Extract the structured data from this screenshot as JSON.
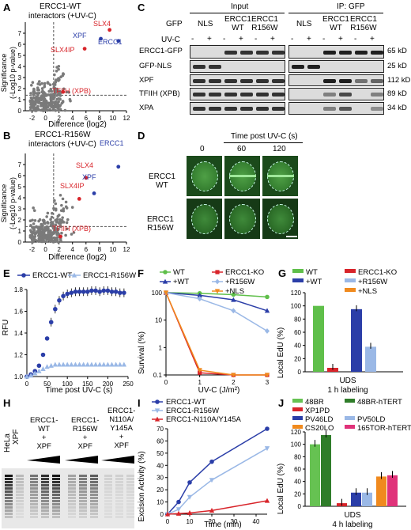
{
  "colors": {
    "wt": "#2b3ea8",
    "r156w": "#9ab8e6",
    "ko": "#d8242a",
    "nls": "#f08a1e",
    "green": "#5fbf4a",
    "red": "#d8242a",
    "blue": "#2b3ea8",
    "gray": "#7a7a7a"
  },
  "panels": {
    "A": "A",
    "B": "B",
    "C": "C",
    "D": "D",
    "E": "E",
    "F": "F",
    "G": "G",
    "H": "H",
    "I": "I",
    "J": "J"
  },
  "panelA": {
    "title": "ERCC1-WT",
    "subtitle": "interactors (+UV-C)",
    "ylabel": "Significance",
    "ylabel2": "(-Log10 p-value)",
    "xlabel": "Difference (log2)",
    "labels": [
      "SLX4",
      "XPF",
      "ERCC1",
      "SLX4IP",
      "TFIIH (XPB)"
    ]
  },
  "panelB": {
    "title": "ERCC1-R156W",
    "subtitle": "interactors (+UV-C)",
    "ylabel": "Significance",
    "ylabel2": "(-Log10 p-value)",
    "xlabel": "Difference (log2)",
    "labels": [
      "ERCC1",
      "SLX4",
      "XPF",
      "SLX4IP",
      "TFIIH (XPB)"
    ]
  },
  "panelC": {
    "input": "Input",
    "ip": "IP: GFP",
    "gfp": "GFP",
    "nls": "NLS",
    "ercc1wt": [
      "ERCC1",
      "WT"
    ],
    "ercc1r": [
      "ERCC1",
      "R156W"
    ],
    "uvc": "UV-C",
    "minus": "-",
    "plus": "+",
    "rows": [
      "ERCC1-GFP",
      "GFP-NLS",
      "XPF",
      "TFIIH (XPB)",
      "XPA"
    ],
    "sizes": [
      "65 kD",
      "25 kD",
      "112 kD",
      "89 kD",
      "34 kD"
    ]
  },
  "panelD": {
    "title": "Time post UV-C (s)",
    "times": [
      "0",
      "60",
      "120"
    ],
    "rows": [
      [
        "ERCC1",
        "WT"
      ],
      [
        "ERCC1",
        "R156W"
      ]
    ]
  },
  "panelE": {
    "legend": [
      "ERCC1-WT",
      "ERCC1-R156W"
    ],
    "ylabel": "RFU",
    "xlabel": "Time post UV-C (s)"
  },
  "panelF": {
    "legend": [
      "WT",
      "ERCC1-KO",
      "+WT",
      "+R156W",
      "+NLS"
    ],
    "ylabel": "Survival (%)",
    "xlabel": "UV-C (J/m²)"
  },
  "panelG": {
    "legend": [
      "WT",
      "ERCC1-KO",
      "+WT",
      "+R156W",
      "+NLS"
    ],
    "ylabel": "Local EdU (%)",
    "xlabel": "UDS",
    "xlabel2": "1 h labeling"
  },
  "panelH": {
    "hela": "HeLa",
    "xpf": "XPF",
    "groups": [
      [
        "ERCC1-",
        "WT",
        "+",
        "XPF"
      ],
      [
        "ERCC1-",
        "R156W",
        "+",
        "XPF"
      ],
      [
        "ERCC1-",
        "N110A/",
        "Y145A",
        "+",
        "XPF"
      ]
    ]
  },
  "panelI": {
    "legend": [
      "ERCC1-WT",
      "ERCC1-R156W",
      "ERCC1-N110A/Y145A"
    ],
    "ylabel": "Excision Activity (%)",
    "xlabel": "Time (min)"
  },
  "panelJ": {
    "legend": [
      "48BR",
      "48BR-hTERT",
      "XP1PD",
      "PV46LD",
      "PV50LD",
      "CS20LO",
      "165TOR-hTERT"
    ],
    "ylabel": "Local EdU (%)",
    "xlabel": "UDS",
    "xlabel2": "4 h labeling"
  },
  "chart_data": [
    {
      "panel": "A",
      "type": "scatter",
      "xlabel": "Difference (log2)",
      "ylabel": "Significance (-Log10 p-value)",
      "xlim": [
        -3,
        12
      ],
      "ylim": [
        0,
        8
      ],
      "highlight": [
        {
          "name": "SLX4",
          "x": 9.5,
          "y": 7.3
        },
        {
          "name": "XPF",
          "x": 8.2,
          "y": 6.5
        },
        {
          "name": "ERCC1",
          "x": 10.8,
          "y": 6.3
        },
        {
          "name": "SLX4IP",
          "x": 5.8,
          "y": 5.6
        },
        {
          "name": "TFIIH (XPB)",
          "x": 2.6,
          "y": 1.7
        }
      ],
      "xticks": [
        -2,
        0,
        2,
        4,
        6,
        8,
        10,
        12
      ],
      "yticks": [
        0,
        1,
        2,
        3,
        4,
        5,
        6,
        7
      ]
    },
    {
      "panel": "B",
      "type": "scatter",
      "xlabel": "Difference (log2)",
      "ylabel": "Significance (-Log10 p-value)",
      "xlim": [
        -3,
        12
      ],
      "ylim": [
        0,
        8
      ],
      "highlight": [
        {
          "name": "ERCC1",
          "x": 10.8,
          "y": 6.8
        },
        {
          "name": "SLX4",
          "x": 6.0,
          "y": 5.8
        },
        {
          "name": "XPF",
          "x": 7.2,
          "y": 4.4
        },
        {
          "name": "SLX4IP",
          "x": 5.0,
          "y": 3.9
        },
        {
          "name": "TFIIH (XPB)",
          "x": 2.2,
          "y": 0.5
        }
      ],
      "xticks": [
        -2,
        0,
        2,
        4,
        6,
        8,
        10,
        12
      ],
      "yticks": [
        0,
        1,
        2,
        3,
        4,
        5,
        6,
        7
      ]
    },
    {
      "panel": "E",
      "type": "line",
      "xlabel": "Time post UV-C (s)",
      "ylabel": "RFU",
      "xlim": [
        0,
        250
      ],
      "ylim": [
        1.0,
        1.8
      ],
      "xticks": [
        0,
        50,
        100,
        150,
        200,
        250
      ],
      "yticks": [
        1.0,
        1.2,
        1.4,
        1.6,
        1.8
      ],
      "series": [
        {
          "name": "ERCC1-WT",
          "x": [
            0,
            10,
            20,
            30,
            40,
            50,
            60,
            70,
            80,
            90,
            100,
            110,
            120,
            130,
            140,
            150,
            160,
            170,
            180,
            190,
            200,
            210,
            220,
            230,
            240
          ],
          "y": [
            1.0,
            1.02,
            1.05,
            1.1,
            1.2,
            1.35,
            1.5,
            1.62,
            1.7,
            1.74,
            1.76,
            1.77,
            1.78,
            1.78,
            1.78,
            1.78,
            1.79,
            1.79,
            1.78,
            1.79,
            1.79,
            1.78,
            1.78,
            1.77,
            1.77
          ]
        },
        {
          "name": "ERCC1-R156W",
          "x": [
            0,
            10,
            20,
            30,
            40,
            50,
            60,
            70,
            80,
            90,
            100,
            110,
            120,
            130,
            140,
            150,
            160,
            170,
            180,
            190,
            200,
            210,
            220,
            230,
            240
          ],
          "y": [
            1.0,
            1.01,
            1.03,
            1.05,
            1.07,
            1.09,
            1.1,
            1.11,
            1.11,
            1.11,
            1.11,
            1.11,
            1.11,
            1.11,
            1.11,
            1.11,
            1.11,
            1.11,
            1.11,
            1.11,
            1.11,
            1.11,
            1.11,
            1.11,
            1.11
          ]
        }
      ]
    },
    {
      "panel": "F",
      "type": "line",
      "xlabel": "UV-C (J/m²)",
      "ylabel": "Survival (%)",
      "xlim": [
        0,
        3
      ],
      "ylim": [
        0.1,
        100
      ],
      "yscale": "log",
      "xticks": [
        0,
        1,
        2,
        3
      ],
      "yticks": [
        0.1,
        1,
        10,
        100
      ],
      "series": [
        {
          "name": "WT",
          "x": [
            0,
            1,
            2,
            3
          ],
          "y": [
            100,
            95,
            85,
            70
          ]
        },
        {
          "name": "+WT",
          "x": [
            0,
            1,
            2,
            3
          ],
          "y": [
            100,
            80,
            55,
            22
          ]
        },
        {
          "name": "ERCC1-KO",
          "x": [
            0,
            1,
            2,
            3
          ],
          "y": [
            100,
            0.12,
            0.1,
            0.1
          ]
        },
        {
          "name": "+R156W",
          "x": [
            0,
            1,
            2,
            3
          ],
          "y": [
            100,
            60,
            22,
            4
          ]
        },
        {
          "name": "+NLS",
          "x": [
            0,
            1,
            2,
            3
          ],
          "y": [
            100,
            0.15,
            0.1,
            0.1
          ]
        }
      ]
    },
    {
      "panel": "G",
      "type": "bar",
      "ylabel": "Local EdU (%)",
      "ylim": [
        0,
        120
      ],
      "yticks": [
        0,
        20,
        40,
        60,
        80,
        100,
        120
      ],
      "series": [
        {
          "name": "WT",
          "values": [
            100
          ]
        },
        {
          "name": "ERCC1-KO",
          "values": [
            6
          ]
        },
        {
          "name": "+WT",
          "values": [
            95
          ]
        },
        {
          "name": "+R156W",
          "values": [
            38
          ]
        },
        {
          "name": "+NLS",
          "values": [
            0
          ]
        }
      ]
    },
    {
      "panel": "I",
      "type": "line",
      "xlabel": "Time (min)",
      "ylabel": "Excision Activity (%)",
      "xlim": [
        0,
        45
      ],
      "ylim": [
        0,
        70
      ],
      "xticks": [
        0,
        10,
        20,
        30,
        40
      ],
      "yticks": [
        0,
        10,
        20,
        30,
        40,
        50,
        60,
        70
      ],
      "series": [
        {
          "name": "ERCC1-WT",
          "x": [
            0,
            5,
            10,
            20,
            45
          ],
          "y": [
            0,
            10,
            26,
            43,
            70
          ]
        },
        {
          "name": "ERCC1-R156W",
          "x": [
            0,
            5,
            10,
            20,
            45
          ],
          "y": [
            0,
            4,
            14,
            28,
            54
          ]
        },
        {
          "name": "ERCC1-N110A/Y145A",
          "x": [
            0,
            5,
            10,
            20,
            45
          ],
          "y": [
            0,
            0.5,
            1,
            3,
            11
          ]
        }
      ]
    },
    {
      "panel": "J",
      "type": "bar",
      "ylabel": "Local EdU (%)",
      "ylim": [
        0,
        120
      ],
      "yticks": [
        0,
        20,
        40,
        60,
        80,
        100,
        120
      ],
      "series": [
        {
          "name": "48BR",
          "values": [
            100
          ]
        },
        {
          "name": "48BR-hTERT",
          "values": [
            115
          ]
        },
        {
          "name": "XP1PD",
          "values": [
            5
          ]
        },
        {
          "name": "PV46LD",
          "values": [
            22
          ]
        },
        {
          "name": "PV50LD",
          "values": [
            22
          ]
        },
        {
          "name": "CS20LO",
          "values": [
            48
          ]
        },
        {
          "name": "165TOR-hTERT",
          "values": [
            50
          ]
        }
      ]
    }
  ]
}
